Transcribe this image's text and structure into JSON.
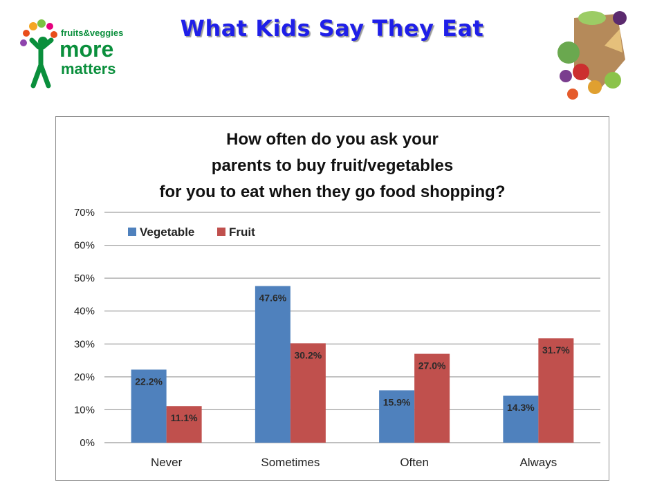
{
  "slide": {
    "title": "What Kids Say They Eat",
    "logo": {
      "line1": "fruits&veggies",
      "line2": "more",
      "line3": "matters",
      "colors": [
        "#e94e1b",
        "#f5a623",
        "#7ac143",
        "#0a8f3c",
        "#8e44ad",
        "#e5007e"
      ]
    },
    "image_icon": "vegetable-basket-icon"
  },
  "chart_data": {
    "type": "bar",
    "title_lines": [
      "How often do you ask your",
      "parents to buy fruit/vegetables",
      "for you to eat when they go food shopping?"
    ],
    "categories": [
      "Never",
      "Sometimes",
      "Often",
      "Always"
    ],
    "series": [
      {
        "name": "Vegetable",
        "values": [
          22.2,
          47.6,
          15.9,
          14.3
        ],
        "labels": [
          "22.2%",
          "47.6%",
          "15.9%",
          "14.3%"
        ],
        "color": "#4f81bd"
      },
      {
        "name": "Fruit",
        "values": [
          11.1,
          30.2,
          27.0,
          31.7
        ],
        "labels": [
          "11.1%",
          "30.2%",
          "27.0%",
          "31.7%"
        ],
        "color": "#c0504d"
      }
    ],
    "yticks": [
      "0%",
      "10%",
      "20%",
      "30%",
      "40%",
      "50%",
      "60%",
      "70%"
    ],
    "ylim": [
      0,
      70
    ],
    "grid": true,
    "legend": "top-left"
  }
}
